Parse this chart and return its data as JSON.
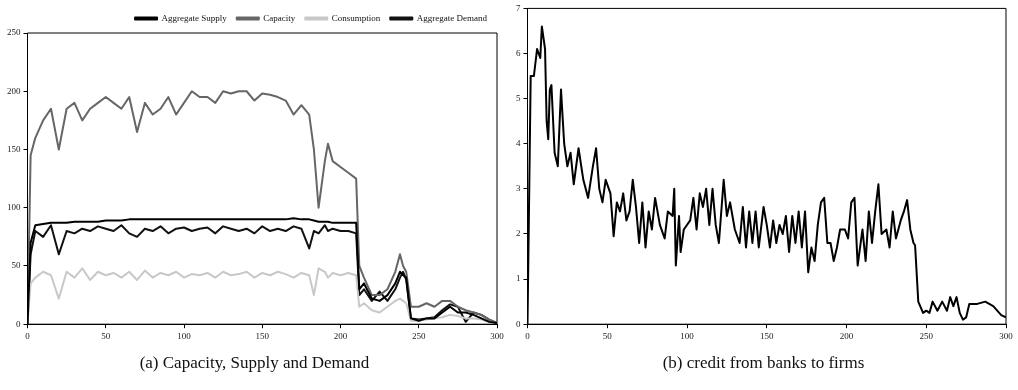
{
  "chart_data": [
    {
      "type": "line",
      "title": "(a) Capacity, Supply and Demand",
      "legend": "top right",
      "x": [
        0,
        2,
        5,
        10,
        15,
        20,
        25,
        30,
        35,
        40,
        45,
        50,
        55,
        60,
        65,
        70,
        75,
        80,
        85,
        90,
        95,
        100,
        105,
        110,
        115,
        120,
        125,
        130,
        135,
        140,
        145,
        150,
        155,
        160,
        165,
        170,
        175,
        180,
        183,
        186,
        190,
        192,
        195,
        200,
        205,
        210,
        212,
        215,
        220,
        225,
        230,
        235,
        238,
        240,
        242,
        245,
        250,
        255,
        260,
        265,
        270,
        275,
        280,
        285,
        290,
        295,
        300
      ],
      "series": [
        {
          "name": "Aggregate Supply",
          "color": "#000000",
          "values": [
            0,
            70,
            85,
            86,
            87,
            87,
            87,
            88,
            88,
            88,
            88,
            89,
            89,
            89,
            90,
            90,
            90,
            90,
            90,
            90,
            90,
            90,
            90,
            90,
            90,
            90,
            90,
            90,
            90,
            90,
            90,
            90,
            90,
            90,
            90,
            91,
            90,
            90,
            89,
            88,
            88,
            88,
            87,
            87,
            87,
            87,
            30,
            35,
            22,
            20,
            25,
            35,
            45,
            42,
            40,
            5,
            3,
            5,
            5,
            10,
            15,
            10,
            10,
            8,
            5,
            2,
            1
          ]
        },
        {
          "name": "Capacity",
          "color": "#666666",
          "values": [
            0,
            145,
            160,
            175,
            185,
            150,
            185,
            190,
            175,
            185,
            190,
            195,
            190,
            185,
            195,
            165,
            190,
            180,
            185,
            195,
            180,
            190,
            200,
            195,
            195,
            190,
            200,
            198,
            200,
            200,
            192,
            198,
            197,
            195,
            192,
            180,
            188,
            180,
            150,
            100,
            140,
            155,
            140,
            135,
            130,
            125,
            50,
            40,
            25,
            25,
            30,
            45,
            60,
            50,
            45,
            15,
            15,
            18,
            15,
            20,
            20,
            15,
            12,
            10,
            8,
            4,
            1
          ]
        },
        {
          "name": "Consumption",
          "color": "#c8c8c8",
          "values": [
            0,
            35,
            40,
            45,
            42,
            22,
            45,
            40,
            48,
            38,
            45,
            42,
            44,
            40,
            45,
            38,
            46,
            40,
            44,
            42,
            45,
            40,
            43,
            42,
            44,
            40,
            45,
            42,
            43,
            45,
            40,
            44,
            42,
            45,
            43,
            40,
            44,
            42,
            25,
            48,
            45,
            40,
            44,
            42,
            44,
            42,
            15,
            18,
            12,
            10,
            15,
            20,
            22,
            20,
            18,
            3,
            3,
            4,
            5,
            6,
            8,
            7,
            5,
            5,
            4,
            2,
            1
          ]
        },
        {
          "name": "Aggregate Demand",
          "color": "#111111",
          "values": [
            0,
            60,
            80,
            75,
            85,
            60,
            80,
            78,
            82,
            80,
            84,
            82,
            80,
            85,
            78,
            75,
            82,
            80,
            84,
            78,
            82,
            83,
            80,
            82,
            83,
            78,
            84,
            82,
            80,
            82,
            78,
            84,
            80,
            82,
            80,
            84,
            82,
            65,
            80,
            78,
            85,
            80,
            82,
            80,
            80,
            78,
            25,
            30,
            20,
            28,
            20,
            30,
            40,
            45,
            38,
            5,
            4,
            5,
            6,
            12,
            17,
            15,
            2,
            10,
            8,
            4,
            1
          ]
        }
      ],
      "xlim": [
        0,
        300
      ],
      "xticks": [
        0,
        50,
        100,
        150,
        200,
        250,
        300
      ],
      "ylim": [
        0,
        250
      ],
      "yticks": [
        0,
        50,
        100,
        150,
        200,
        250
      ]
    },
    {
      "type": "line",
      "title": "(b) credit from banks to firms",
      "x": [
        0,
        2,
        4,
        6,
        8,
        9,
        11,
        12,
        13,
        14,
        15,
        17,
        19,
        21,
        23,
        25,
        27,
        29,
        32,
        35,
        38,
        41,
        43,
        45,
        47,
        49,
        52,
        54,
        56,
        58,
        60,
        62,
        64,
        66,
        68,
        70,
        72,
        74,
        76,
        78,
        80,
        83,
        86,
        88,
        91,
        92,
        93,
        95,
        96,
        98,
        102,
        104,
        106,
        108,
        110,
        112,
        114,
        116,
        118,
        120,
        123,
        125,
        127,
        130,
        133,
        135,
        137,
        139,
        141,
        143,
        145,
        148,
        150,
        152,
        154,
        156,
        158,
        160,
        162,
        164,
        166,
        168,
        170,
        172,
        174,
        176,
        178,
        180,
        182,
        184,
        186,
        188,
        190,
        192,
        194,
        196,
        199,
        201,
        203,
        205,
        207,
        210,
        212,
        214,
        216,
        218,
        220,
        222,
        225,
        227,
        229,
        231,
        234,
        236,
        238,
        240,
        242,
        243,
        245,
        248,
        250,
        252,
        254,
        257,
        260,
        263,
        265,
        267,
        269,
        271,
        273,
        275,
        277,
        282,
        287,
        292,
        297,
        300
      ],
      "series": [
        {
          "color": "#000000",
          "values": [
            0,
            5.5,
            5.5,
            6.1,
            5.9,
            6.6,
            6.1,
            4.5,
            4.1,
            5.2,
            5.3,
            3.8,
            3.5,
            5.2,
            4.0,
            3.5,
            3.8,
            3.1,
            3.9,
            3.2,
            2.8,
            3.5,
            3.9,
            3.0,
            2.7,
            3.2,
            2.9,
            1.95,
            2.7,
            2.5,
            2.9,
            2.3,
            2.5,
            3.2,
            2.6,
            1.8,
            2.7,
            1.7,
            2.5,
            2.1,
            2.8,
            2.2,
            1.9,
            2.5,
            2.4,
            3.0,
            1.3,
            2.4,
            1.6,
            2.1,
            2.3,
            2.8,
            2.1,
            2.9,
            2.6,
            3.0,
            2.2,
            3.0,
            2.2,
            1.8,
            3.2,
            2.4,
            2.7,
            2.1,
            1.8,
            2.6,
            1.7,
            2.5,
            1.8,
            2.5,
            1.7,
            2.6,
            2.2,
            1.7,
            2.3,
            1.8,
            2.2,
            2.0,
            2.4,
            1.6,
            2.4,
            1.8,
            2.5,
            1.7,
            2.5,
            1.15,
            1.7,
            1.4,
            2.2,
            2.7,
            2.8,
            1.8,
            1.8,
            1.4,
            1.7,
            2.1,
            2.1,
            1.9,
            2.7,
            2.8,
            1.3,
            2.1,
            1.4,
            2.5,
            1.8,
            2.5,
            3.1,
            2.0,
            2.1,
            1.7,
            2.5,
            1.9,
            2.3,
            2.5,
            2.75,
            2.1,
            1.8,
            1.75,
            0.5,
            0.25,
            0.3,
            0.25,
            0.5,
            0.3,
            0.5,
            0.3,
            0.6,
            0.4,
            0.6,
            0.25,
            0.1,
            0.15,
            0.45,
            0.45,
            0.5,
            0.4,
            0.2,
            0.15
          ]
        }
      ],
      "xlim": [
        0,
        300
      ],
      "xticks": [
        0,
        50,
        100,
        150,
        200,
        250,
        300
      ],
      "ylim": [
        0,
        7
      ],
      "yticks": [
        0,
        1,
        2,
        3,
        4,
        5,
        6,
        7
      ]
    }
  ]
}
